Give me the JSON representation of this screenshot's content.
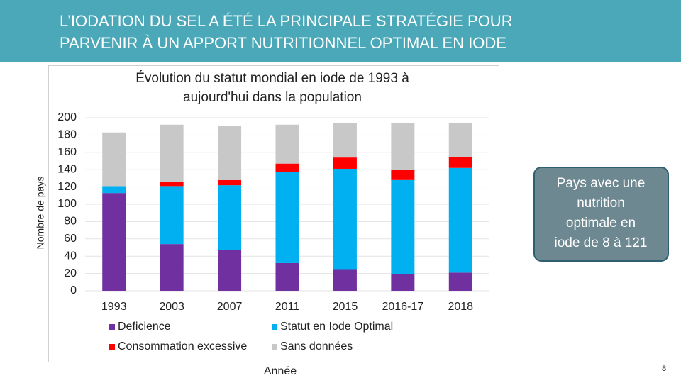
{
  "header": {
    "title_lines": [
      "L’IODATION DU SEL A ÉTÉ LA PRINCIPALE STRATÉGIE POUR",
      "PARVENIR À UN APPORT NUTRITIONNEL OPTIMAL EN IODE"
    ]
  },
  "chart_data": {
    "type": "stacked_bar",
    "title_lines": [
      "Évolution du statut mondial en iode de 1993 à",
      "aujourd'hui dans la population"
    ],
    "x_label": "Année",
    "y_label": "Nombre de pays",
    "categories": [
      "1993",
      "2003",
      "2007",
      "2011",
      "2015",
      "2016-17",
      "2018"
    ],
    "series": [
      {
        "name": "Deficience",
        "color": "#7030a0",
        "values": [
          113,
          54,
          47,
          32,
          25,
          19,
          21
        ]
      },
      {
        "name": "Statut en Iode Optimal",
        "color": "#00b0f0",
        "values": [
          8,
          67,
          75,
          105,
          116,
          109,
          121
        ]
      },
      {
        "name": "Consommation excessive",
        "color": "#ff0000",
        "values": [
          0,
          5,
          6,
          10,
          13,
          12,
          13
        ]
      },
      {
        "name": "Sans données",
        "color": "#c8c8c8",
        "values": [
          62,
          66,
          63,
          45,
          40,
          54,
          39
        ]
      }
    ],
    "ylim": [
      0,
      200
    ],
    "yticks": [
      0,
      20,
      40,
      60,
      80,
      100,
      120,
      140,
      160,
      180,
      200
    ],
    "grid": true
  },
  "callout": {
    "lines": [
      "Pays avec une",
      "nutrition",
      "optimale en",
      "iode de 8 à 121"
    ]
  },
  "page_number": "8"
}
